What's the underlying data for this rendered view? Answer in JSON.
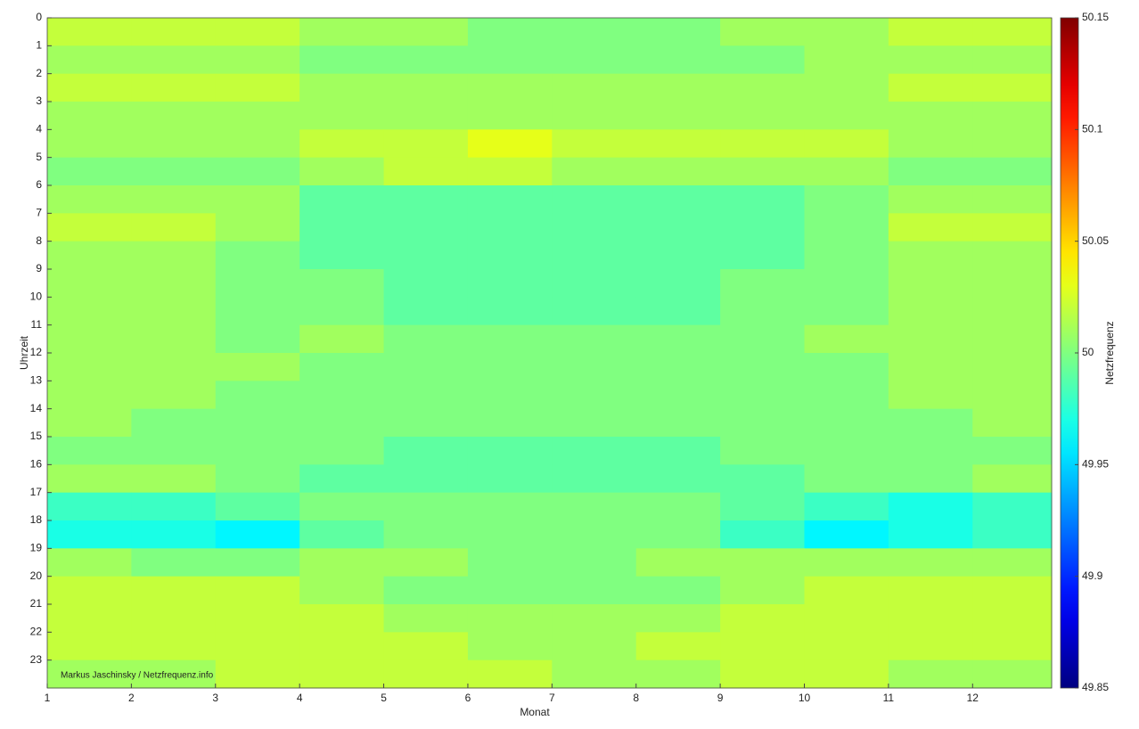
{
  "chart_data": {
    "type": "heatmap",
    "xlabel": "Monat",
    "ylabel": "Uhrzeit",
    "colorbar_label": "Netzfrequenz",
    "annotation": "Markus Jaschinsky / Netzfrequenz.info",
    "x": [
      1,
      2,
      3,
      4,
      5,
      6,
      7,
      8,
      9,
      10,
      11,
      12
    ],
    "y": [
      0,
      1,
      2,
      3,
      4,
      5,
      6,
      7,
      8,
      9,
      10,
      11,
      12,
      13,
      14,
      15,
      16,
      17,
      18,
      19,
      20,
      21,
      22,
      23
    ],
    "z": [
      [
        50.02,
        50.02,
        50.02,
        50.01,
        50.01,
        50.0,
        50.0,
        50.0,
        50.01,
        50.01,
        50.02,
        50.02
      ],
      [
        50.01,
        50.01,
        50.01,
        50.0,
        50.0,
        50.0,
        50.0,
        50.0,
        50.0,
        50.01,
        50.01,
        50.01
      ],
      [
        50.02,
        50.02,
        50.02,
        50.01,
        50.01,
        50.01,
        50.01,
        50.01,
        50.01,
        50.01,
        50.02,
        50.02
      ],
      [
        50.01,
        50.01,
        50.01,
        50.01,
        50.01,
        50.01,
        50.01,
        50.01,
        50.01,
        50.01,
        50.01,
        50.01
      ],
      [
        50.01,
        50.01,
        50.01,
        50.02,
        50.02,
        50.03,
        50.02,
        50.02,
        50.02,
        50.02,
        50.01,
        50.01
      ],
      [
        50.0,
        50.0,
        50.0,
        50.01,
        50.02,
        50.02,
        50.01,
        50.01,
        50.01,
        50.01,
        50.0,
        50.0
      ],
      [
        50.01,
        50.01,
        50.01,
        49.99,
        49.99,
        49.99,
        49.99,
        49.99,
        49.99,
        50.0,
        50.01,
        50.01
      ],
      [
        50.02,
        50.02,
        50.01,
        49.99,
        49.99,
        49.99,
        49.99,
        49.99,
        49.99,
        50.0,
        50.02,
        50.02
      ],
      [
        50.01,
        50.01,
        50.0,
        49.99,
        49.99,
        49.99,
        49.99,
        49.99,
        49.99,
        50.0,
        50.01,
        50.01
      ],
      [
        50.01,
        50.01,
        50.0,
        50.0,
        49.99,
        49.99,
        49.99,
        49.99,
        50.0,
        50.0,
        50.01,
        50.01
      ],
      [
        50.01,
        50.01,
        50.0,
        50.0,
        49.99,
        49.99,
        49.99,
        49.99,
        50.0,
        50.0,
        50.01,
        50.01
      ],
      [
        50.01,
        50.01,
        50.0,
        50.01,
        50.0,
        50.0,
        50.0,
        50.0,
        50.0,
        50.01,
        50.01,
        50.01
      ],
      [
        50.01,
        50.01,
        50.01,
        50.0,
        50.0,
        50.0,
        50.0,
        50.0,
        50.0,
        50.0,
        50.01,
        50.01
      ],
      [
        50.01,
        50.01,
        50.0,
        50.0,
        50.0,
        50.0,
        50.0,
        50.0,
        50.0,
        50.0,
        50.01,
        50.01
      ],
      [
        50.01,
        50.0,
        50.0,
        50.0,
        50.0,
        50.0,
        50.0,
        50.0,
        50.0,
        50.0,
        50.0,
        50.01
      ],
      [
        50.0,
        50.0,
        50.0,
        50.0,
        49.99,
        49.99,
        49.99,
        49.99,
        50.0,
        50.0,
        50.0,
        50.0
      ],
      [
        50.01,
        50.01,
        50.0,
        49.99,
        49.99,
        49.99,
        49.99,
        49.99,
        49.99,
        50.0,
        50.0,
        50.01
      ],
      [
        49.98,
        49.98,
        49.99,
        50.0,
        50.0,
        50.0,
        50.0,
        50.0,
        49.99,
        49.98,
        49.97,
        49.98
      ],
      [
        49.97,
        49.97,
        49.96,
        49.99,
        50.0,
        50.0,
        50.0,
        50.0,
        49.98,
        49.96,
        49.97,
        49.98
      ],
      [
        50.01,
        50.0,
        50.0,
        50.01,
        50.01,
        50.0,
        50.0,
        50.01,
        50.01,
        50.01,
        50.01,
        50.01
      ],
      [
        50.02,
        50.02,
        50.02,
        50.01,
        50.0,
        50.0,
        50.0,
        50.0,
        50.01,
        50.02,
        50.02,
        50.02
      ],
      [
        50.02,
        50.02,
        50.02,
        50.02,
        50.01,
        50.01,
        50.01,
        50.01,
        50.02,
        50.02,
        50.02,
        50.02
      ],
      [
        50.02,
        50.02,
        50.02,
        50.02,
        50.02,
        50.01,
        50.01,
        50.02,
        50.02,
        50.02,
        50.02,
        50.02
      ],
      [
        50.01,
        50.01,
        50.02,
        50.02,
        50.02,
        50.02,
        50.01,
        50.01,
        50.02,
        50.02,
        50.01,
        50.01
      ]
    ],
    "xlim": [
      1,
      12.94
    ],
    "ylim": [
      0,
      24
    ],
    "xticks": [
      1,
      2,
      3,
      4,
      5,
      6,
      7,
      8,
      9,
      10,
      11,
      12
    ],
    "yticks": [
      0,
      1,
      2,
      3,
      4,
      5,
      6,
      7,
      8,
      9,
      10,
      11,
      12,
      13,
      14,
      15,
      16,
      17,
      18,
      19,
      20,
      21,
      22,
      23
    ],
    "zlim": [
      49.85,
      50.15
    ],
    "zticks": [
      49.85,
      49.9,
      49.95,
      50,
      50.05,
      50.1,
      50.15
    ],
    "colormap": "jet",
    "y_reversed": true
  }
}
